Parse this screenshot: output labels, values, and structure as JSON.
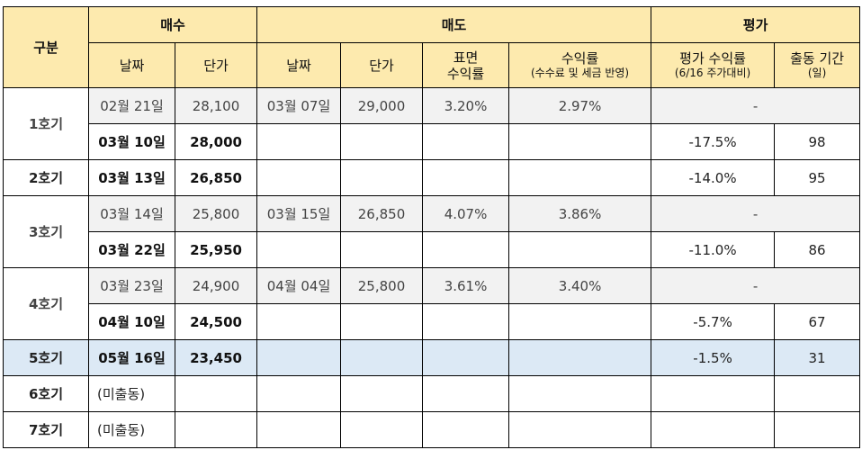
{
  "header": {
    "category": "구분",
    "buy": "매수",
    "sell": "매도",
    "eval": "평가",
    "buy_date": "날짜",
    "buy_price": "단가",
    "sell_date": "날짜",
    "sell_price": "단가",
    "surface_return_l1": "표면",
    "surface_return_l2": "수익률",
    "net_return_l1": "수익률",
    "net_return_l2": "(수수료 및 세금 반영)",
    "eval_return_l1": "평가 수익률",
    "eval_return_l2": "(6/16 주가대비)",
    "period_l1": "출동 기간",
    "period_l2": "(일)"
  },
  "groups": [
    {
      "name": "1호기",
      "rows": [
        {
          "buy_date": "02월 21일",
          "buy_price": "28,100",
          "sell_date": "03월 07일",
          "sell_price": "29,000",
          "surface": "3.20%",
          "net": "2.97%",
          "eval_return": "-",
          "period": ""
        },
        {
          "buy_date": "03월 10일",
          "buy_price": "28,000",
          "sell_date": "",
          "sell_price": "",
          "surface": "",
          "net": "",
          "eval_return": "-17.5%",
          "period": "98"
        }
      ]
    },
    {
      "name": "2호기",
      "rows": [
        {
          "buy_date": "03월 13일",
          "buy_price": "26,850",
          "sell_date": "",
          "sell_price": "",
          "surface": "",
          "net": "",
          "eval_return": "-14.0%",
          "period": "95"
        }
      ]
    },
    {
      "name": "3호기",
      "rows": [
        {
          "buy_date": "03월 14일",
          "buy_price": "25,800",
          "sell_date": "03월 15일",
          "sell_price": "26,850",
          "surface": "4.07%",
          "net": "3.86%",
          "eval_return": "-",
          "period": ""
        },
        {
          "buy_date": "03월 22일",
          "buy_price": "25,950",
          "sell_date": "",
          "sell_price": "",
          "surface": "",
          "net": "",
          "eval_return": "-11.0%",
          "period": "86"
        }
      ]
    },
    {
      "name": "4호기",
      "rows": [
        {
          "buy_date": "03월 23일",
          "buy_price": "24,900",
          "sell_date": "04월 04일",
          "sell_price": "25,800",
          "surface": "3.61%",
          "net": "3.40%",
          "eval_return": "-",
          "period": ""
        },
        {
          "buy_date": "04월 10일",
          "buy_price": "24,500",
          "sell_date": "",
          "sell_price": "",
          "surface": "",
          "net": "",
          "eval_return": "-5.7%",
          "period": "67"
        }
      ]
    },
    {
      "name": "5호기",
      "rows": [
        {
          "buy_date": "05월 16일",
          "buy_price": "23,450",
          "sell_date": "",
          "sell_price": "",
          "surface": "",
          "net": "",
          "eval_return": "-1.5%",
          "period": "31"
        }
      ]
    },
    {
      "name": "6호기",
      "rows": [
        {
          "buy_date": "(미출동)",
          "buy_price": "",
          "sell_date": "",
          "sell_price": "",
          "surface": "",
          "net": "",
          "eval_return": "",
          "period": ""
        }
      ]
    },
    {
      "name": "7호기",
      "rows": [
        {
          "buy_date": "(미출동)",
          "buy_price": "",
          "sell_date": "",
          "sell_price": "",
          "surface": "",
          "net": "",
          "eval_return": "",
          "period": ""
        }
      ]
    }
  ],
  "colors": {
    "header_bg": "#fdeaae",
    "sold_row_bg": "#f2f2f2",
    "highlight_row_bg": "#dce9f5"
  }
}
